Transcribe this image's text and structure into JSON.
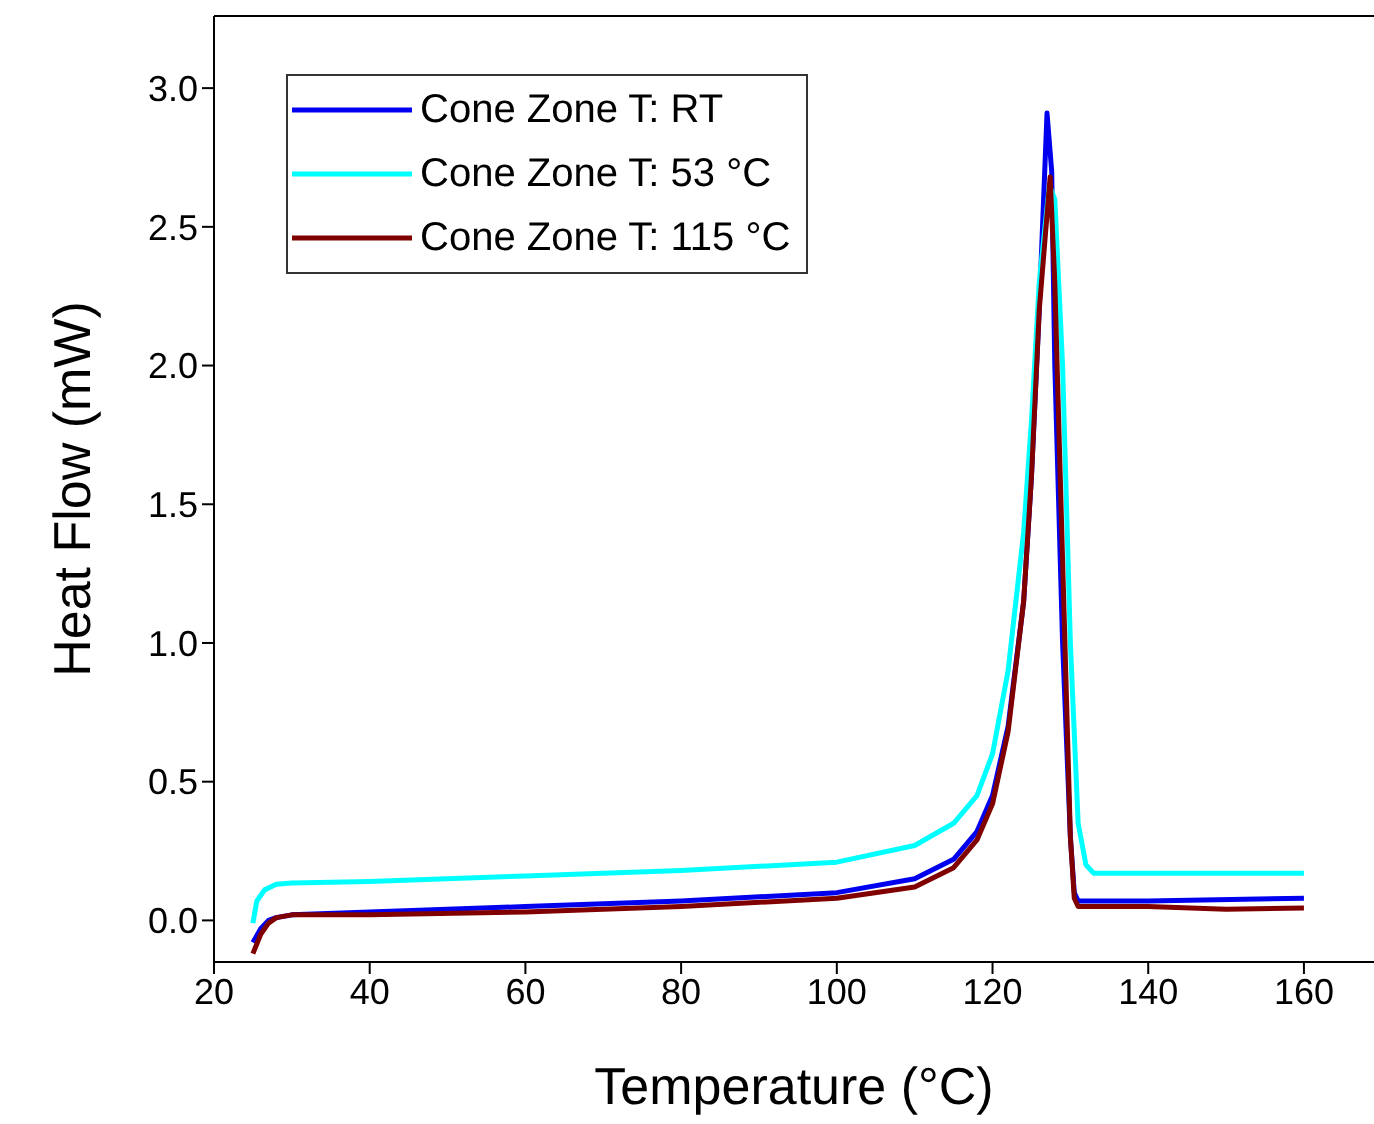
{
  "chart_data": {
    "type": "line",
    "xlabel": "Temperature (°C)",
    "ylabel": "Heat Flow (mW)",
    "xlim": [
      20,
      169
    ],
    "xticks": [
      20,
      40,
      60,
      80,
      100,
      120,
      140,
      160
    ],
    "ylim": [
      -0.15,
      3.26
    ],
    "yticks": [
      {
        "value": 0,
        "label": "0.0"
      },
      {
        "value": 0.5,
        "label": "0.5"
      },
      {
        "value": 1,
        "label": "1.0"
      },
      {
        "value": 1.5,
        "label": "1.5"
      },
      {
        "value": 2,
        "label": "2.0"
      },
      {
        "value": 2.5,
        "label": "2.5"
      },
      {
        "value": 3,
        "label": "3.0"
      }
    ],
    "legend": "top left",
    "grid": false,
    "marker": "none",
    "line_style": "solid",
    "series": [
      {
        "name": "Cone Zone T: RT",
        "color": "#0000ee",
        "x": [
          25,
          26,
          27,
          28,
          30,
          40,
          60,
          80,
          100,
          110,
          115,
          118,
          120,
          122,
          124,
          125,
          126,
          127,
          127.6,
          128,
          129,
          130,
          130.5,
          131,
          140,
          160
        ],
        "values": [
          -0.08,
          -0.03,
          0.0,
          0.01,
          0.02,
          0.03,
          0.05,
          0.07,
          0.1,
          0.15,
          0.22,
          0.32,
          0.45,
          0.7,
          1.15,
          1.6,
          2.2,
          2.91,
          2.7,
          2.0,
          1.0,
          0.3,
          0.1,
          0.07,
          0.07,
          0.08
        ]
      },
      {
        "name": "Cone Zone T: 53 °C",
        "color": "#00ffff",
        "x": [
          25,
          25.5,
          26.5,
          28,
          30,
          40,
          60,
          80,
          100,
          110,
          115,
          118,
          120,
          122,
          124,
          125,
          126,
          127.3,
          128,
          129,
          130,
          131,
          132,
          133,
          140,
          160
        ],
        "values": [
          -0.01,
          0.07,
          0.11,
          0.13,
          0.135,
          0.14,
          0.16,
          0.18,
          0.21,
          0.27,
          0.35,
          0.45,
          0.6,
          0.9,
          1.4,
          1.8,
          2.3,
          2.65,
          2.6,
          2.0,
          1.0,
          0.35,
          0.2,
          0.17,
          0.17,
          0.17
        ]
      },
      {
        "name": "Cone Zone T: 115 °C",
        "color": "#800000",
        "x": [
          25,
          26,
          27,
          28,
          30,
          40,
          60,
          80,
          100,
          110,
          115,
          118,
          120,
          122,
          124,
          125,
          126,
          127.4,
          128,
          129,
          130,
          130.5,
          131,
          140,
          150,
          160
        ],
        "values": [
          -0.12,
          -0.05,
          -0.01,
          0.01,
          0.02,
          0.02,
          0.03,
          0.05,
          0.08,
          0.12,
          0.19,
          0.29,
          0.42,
          0.68,
          1.15,
          1.6,
          2.2,
          2.68,
          2.3,
          1.3,
          0.3,
          0.08,
          0.05,
          0.05,
          0.04,
          0.045
        ]
      }
    ]
  }
}
